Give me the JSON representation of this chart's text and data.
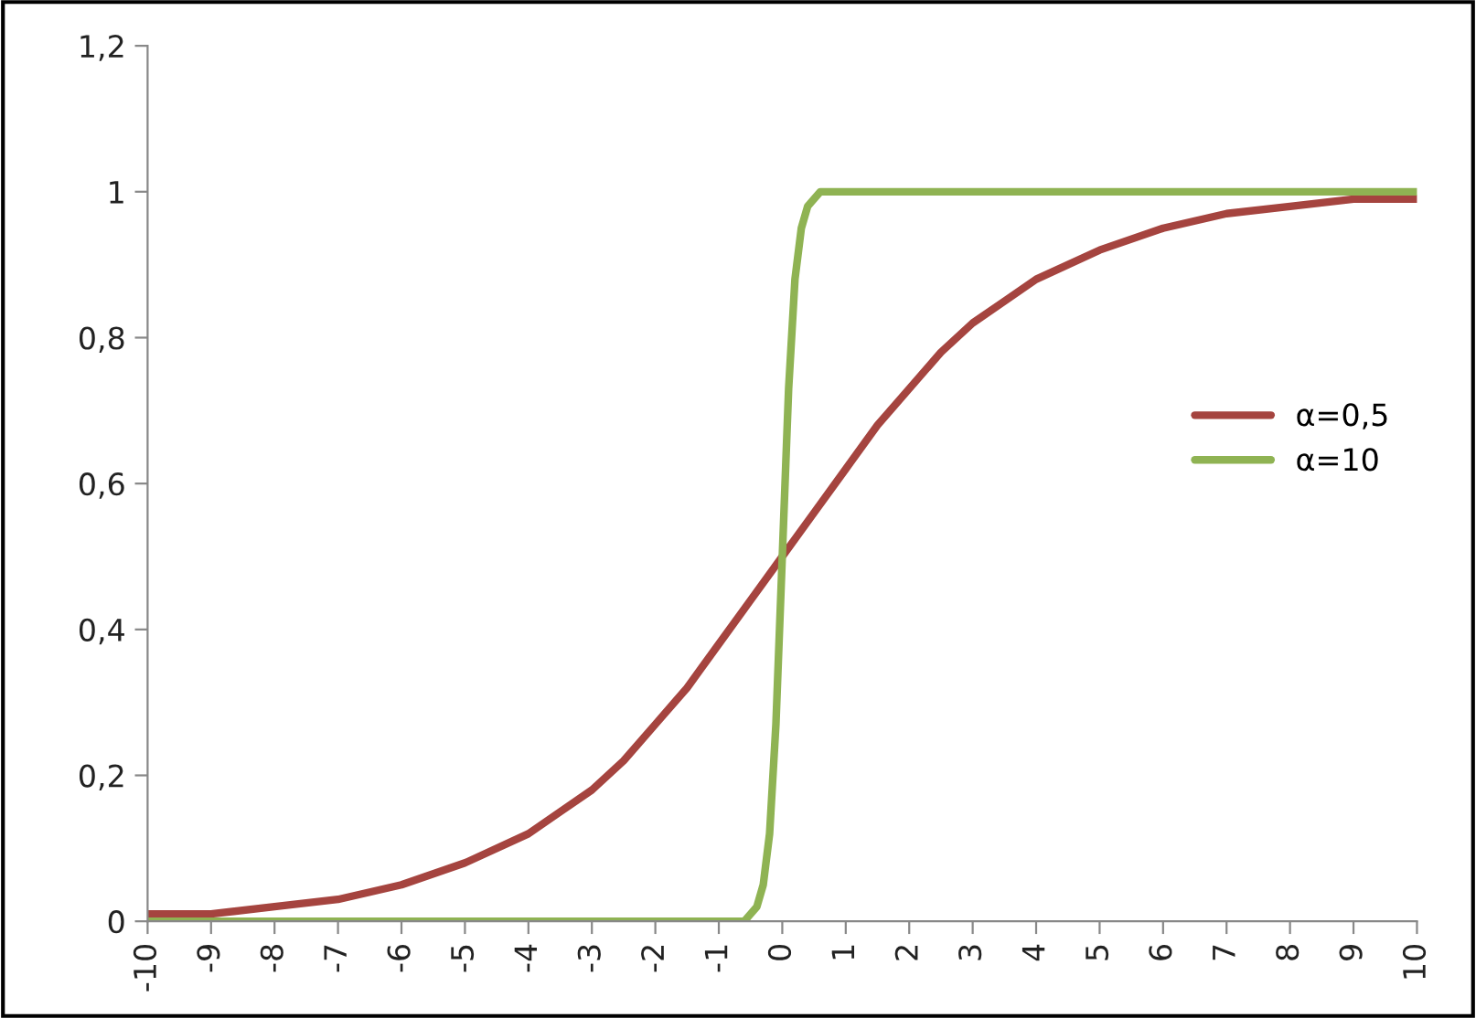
{
  "chart_data": {
    "type": "line",
    "xlim": [
      -10,
      10
    ],
    "ylim": [
      0,
      1.2
    ],
    "xticks": [
      -10,
      -9,
      -8,
      -7,
      -6,
      -5,
      -4,
      -3,
      -2,
      -1,
      0,
      1,
      2,
      3,
      4,
      5,
      6,
      7,
      8,
      9,
      10
    ],
    "yticks": [
      0,
      {
        "value": 0.2,
        "label": "0,2"
      },
      {
        "value": 0.4,
        "label": "0,4"
      },
      {
        "value": 0.6,
        "label": "0,6"
      },
      {
        "value": 0.8,
        "label": "0,8"
      },
      1,
      {
        "value": 1.2,
        "label": "1,2"
      }
    ],
    "grid": false,
    "legend": "right",
    "marker": "none",
    "line_style": "solid",
    "series": [
      {
        "name": "α=0,5",
        "color": "#a5443f",
        "x": [
          -10,
          -9,
          -8,
          -7,
          -6,
          -5,
          -4,
          -3.5,
          -3,
          -2.5,
          -2,
          -1.5,
          -1,
          -0.5,
          0,
          0.5,
          1,
          1.5,
          2,
          2.5,
          3,
          3.5,
          4,
          5,
          6,
          7,
          8,
          9,
          10
        ],
        "values": [
          0.01,
          0.01,
          0.02,
          0.03,
          0.05,
          0.08,
          0.12,
          0.15,
          0.18,
          0.22,
          0.27,
          0.32,
          0.38,
          0.44,
          0.5,
          0.56,
          0.62,
          0.68,
          0.73,
          0.78,
          0.82,
          0.85,
          0.88,
          0.92,
          0.95,
          0.97,
          0.98,
          0.99,
          0.99
        ]
      },
      {
        "name": "α=10",
        "color": "#8fb353",
        "x": [
          -10,
          -0.6,
          -0.4,
          -0.3,
          -0.2,
          -0.1,
          0,
          0.1,
          0.2,
          0.3,
          0.4,
          0.6,
          10
        ],
        "values": [
          0,
          0,
          0.02,
          0.05,
          0.12,
          0.27,
          0.5,
          0.73,
          0.88,
          0.95,
          0.98,
          1,
          1
        ]
      }
    ]
  }
}
